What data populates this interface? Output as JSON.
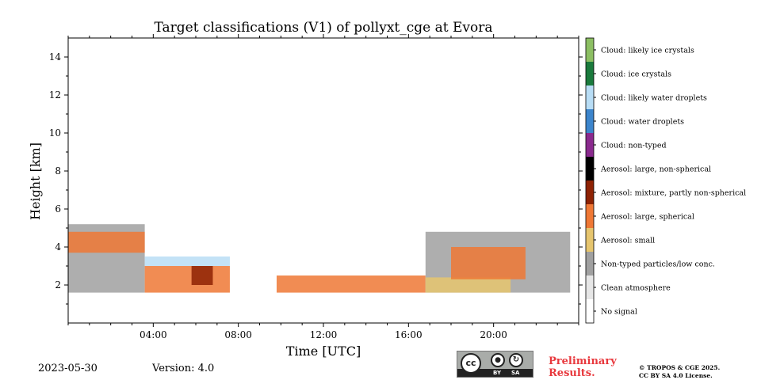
{
  "chart_data": {
    "type": "heatmap",
    "title": "Target classifications (V1) of pollyxt_cge at Evora",
    "xlabel": "Time [UTC]",
    "ylabel": "Height [km]",
    "xlim": [
      0,
      24
    ],
    "ylim": [
      0,
      15
    ],
    "x_ticks": [
      {
        "value": 4,
        "label": "04:00"
      },
      {
        "value": 8,
        "label": "08:00"
      },
      {
        "value": 12,
        "label": "12:00"
      },
      {
        "value": 16,
        "label": "16:00"
      },
      {
        "value": 20,
        "label": "20:00"
      }
    ],
    "y_ticks": [
      {
        "value": 2,
        "label": "2"
      },
      {
        "value": 4,
        "label": "4"
      },
      {
        "value": 6,
        "label": "6"
      },
      {
        "value": 8,
        "label": "8"
      },
      {
        "value": 10,
        "label": "10"
      },
      {
        "value": 12,
        "label": "12"
      },
      {
        "value": 14,
        "label": "14"
      }
    ],
    "legend": [
      {
        "label": "No signal",
        "color": "#ffffff"
      },
      {
        "label": "Clean atmosphere",
        "color": "#e6e6e6"
      },
      {
        "label": "Non-typed particles/low conc.",
        "color": "#a0a0a0"
      },
      {
        "label": "Aerosol: small",
        "color": "#e6c56e"
      },
      {
        "label": "Aerosol: large, spherical",
        "color": "#ef7835"
      },
      {
        "label": "Aerosol: mixture, partly non-spherical",
        "color": "#8e2203"
      },
      {
        "label": "Aerosol: large, non-spherical",
        "color": "#000000"
      },
      {
        "label": "Cloud: non-typed",
        "color": "#8a2a8e"
      },
      {
        "label": "Cloud: water droplets",
        "color": "#3c85cc"
      },
      {
        "label": "Cloud: likely water droplets",
        "color": "#b8ddf5"
      },
      {
        "label": "Cloud: ice crystals",
        "color": "#1a7a3c"
      },
      {
        "label": "Cloud: likely ice crystals",
        "color": "#8cbf63"
      }
    ],
    "lowest_range_gate_km": 1.6,
    "classified_regions": [
      {
        "class": "Non-typed particles/low conc.",
        "t_start": 0.0,
        "t_end": 3.6,
        "h_min": 1.6,
        "h_max": 5.2
      },
      {
        "class": "Aerosol: large, spherical",
        "t_start": 0.0,
        "t_end": 3.6,
        "h_min": 3.7,
        "h_max": 4.8
      },
      {
        "class": "Aerosol: large, spherical",
        "t_start": 3.6,
        "t_end": 7.6,
        "h_min": 1.6,
        "h_max": 3.0
      },
      {
        "class": "Cloud: likely water droplets",
        "t_start": 3.6,
        "t_end": 7.6,
        "h_min": 3.0,
        "h_max": 3.5
      },
      {
        "class": "Aerosol: mixture, partly non-spherical",
        "t_start": 5.8,
        "t_end": 6.8,
        "h_min": 2.0,
        "h_max": 3.0
      },
      {
        "class": "Aerosol: large, spherical",
        "t_start": 9.8,
        "t_end": 16.8,
        "h_min": 1.6,
        "h_max": 2.5
      },
      {
        "class": "Non-typed particles/low conc.",
        "t_start": 16.8,
        "t_end": 23.6,
        "h_min": 1.6,
        "h_max": 4.8
      },
      {
        "class": "Aerosol: small",
        "t_start": 16.8,
        "t_end": 20.8,
        "h_min": 1.6,
        "h_max": 2.4
      },
      {
        "class": "Aerosol: large, spherical",
        "t_start": 18.0,
        "t_end": 21.5,
        "h_min": 2.3,
        "h_max": 4.0
      }
    ]
  },
  "footer": {
    "date": "2023-05-30",
    "version": "Version: 4.0",
    "cc_symbol": "cc",
    "cc_by": "BY",
    "cc_sa": "SA",
    "preliminary_line1": "Preliminary",
    "preliminary_line2": "Results.",
    "copyright": "© TROPOS & CGE 2025.",
    "license": "CC BY SA 4.0 License."
  }
}
